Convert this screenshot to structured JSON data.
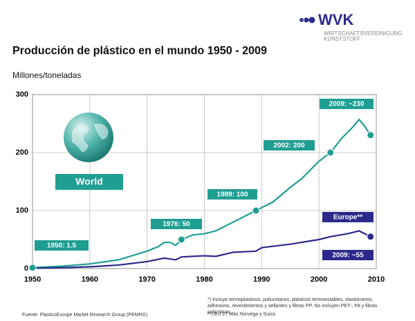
{
  "brand": {
    "name": "WVK",
    "line1": "WIRTSCHAFTSVEREINIGUNG",
    "line2": "KUNSTSTOFF"
  },
  "chart_data": {
    "type": "line",
    "title": "Producción de plástico en el mundo 1950 - 2009",
    "y_label": "Millones/toneladas",
    "globe_label": "World",
    "annotations": [
      "1950: 1.5",
      "1976: 50",
      "1989: 100",
      "2002: 200",
      "2009: ~230",
      "Europe**",
      "2009: ~55"
    ],
    "xlim": [
      1950,
      2010
    ],
    "xticks": [
      1950,
      1960,
      1970,
      1980,
      1990,
      2000,
      2010
    ],
    "ylim": [
      0,
      300
    ],
    "yticks": [
      0,
      100,
      200,
      300
    ],
    "grid": true,
    "series": [
      {
        "name": "World",
        "color": "#1f9e92",
        "x": [
          1950,
          1955,
          1960,
          1965,
          1970,
          1972,
          1973,
          1974,
          1975,
          1976,
          1978,
          1980,
          1982,
          1985,
          1987,
          1989,
          1990,
          1992,
          1995,
          1997,
          2000,
          2002,
          2004,
          2006,
          2007,
          2008,
          2009
        ],
        "values": [
          1.5,
          4,
          8,
          15,
          30,
          38,
          45,
          45,
          40,
          50,
          58,
          60,
          65,
          80,
          90,
          100,
          105,
          115,
          140,
          155,
          185,
          200,
          225,
          245,
          257,
          245,
          230
        ]
      },
      {
        "name": "Europe",
        "color": "#2b2a8c",
        "x": [
          1950,
          1955,
          1960,
          1965,
          1970,
          1973,
          1975,
          1976,
          1980,
          1982,
          1985,
          1989,
          1990,
          1995,
          2000,
          2002,
          2005,
          2007,
          2008,
          2009
        ],
        "values": [
          0.5,
          1.5,
          3,
          6,
          12,
          18,
          15,
          20,
          22,
          21,
          28,
          30,
          36,
          42,
          50,
          55,
          60,
          65,
          60,
          55
        ]
      }
    ],
    "source": "Fuente: PlasticsEurope Market Research Group (PEMRG)",
    "notes": [
      "*)   Incluye termoplásticos, poliuretanos, plásticos termoestables, elastómeros, adhesivos, revestimientos y sellantes y fibras PP. No incluyen PET-, PA y fibras policríticas.",
      "**)  EU 27 Más Noruega y Suiza"
    ]
  }
}
